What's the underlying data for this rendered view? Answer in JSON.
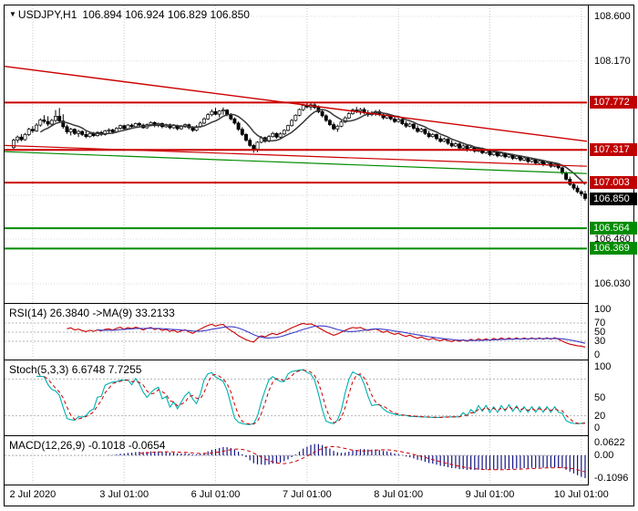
{
  "window": {
    "bg": "#ffffff",
    "border_color": "#000000"
  },
  "header": {
    "dropdown_icon": "▼",
    "symbol": "USDJPY,H1",
    "ohlc": "106.894 106.924 106.829 106.850"
  },
  "panels": {
    "rsi": {
      "title": "RSI(14) 26.3840  ->MA(9) 33.2133",
      "value": 26.384,
      "ma_value": 33.2133,
      "levels": [
        70,
        50,
        30
      ],
      "scale": [
        {
          "v": 100,
          "t": "100"
        },
        {
          "v": 70,
          "t": "70"
        },
        {
          "v": 50,
          "t": "50"
        },
        {
          "v": 30,
          "t": "30"
        },
        {
          "v": 0,
          "t": "0"
        }
      ],
      "colors": {
        "rsi": "#cc0000",
        "ma": "#3c3cc8"
      }
    },
    "stoch": {
      "title": "Stoch(5,3,3) 6.6748 7.7255",
      "k_value": 6.6748,
      "d_value": 7.7255,
      "levels": [
        80,
        20
      ],
      "scale": [
        {
          "v": 100,
          "t": "100"
        },
        {
          "v": 50,
          "t": "50"
        },
        {
          "v": 20,
          "t": "20"
        },
        {
          "v": 0,
          "t": "0"
        }
      ],
      "colors": {
        "k": "#00b0b0",
        "d": "#cc0000"
      }
    },
    "macd": {
      "title": "MACD(12,26,9) -0.1018 -0.0654",
      "macd_value": -0.1018,
      "signal_value": -0.0654,
      "range": [
        -0.1096,
        0.0622
      ],
      "scale": [
        {
          "v": 0.0622,
          "t": "0.0622"
        },
        {
          "v": 0,
          "t": "0.00"
        },
        {
          "v": -0.1096,
          "t": "-0.1096"
        }
      ],
      "colors": {
        "hist": "#141485",
        "signal": "#cc0000"
      }
    }
  },
  "price_scale": {
    "ticks": [
      {
        "v": 108.6,
        "t": "108.600"
      },
      {
        "v": 108.17,
        "t": "108.170"
      },
      {
        "v": 106.46,
        "t": "106.460"
      },
      {
        "v": 106.03,
        "t": "106.030"
      }
    ],
    "grid": [
      108.6,
      108.17,
      107.74,
      107.31,
      106.88,
      106.46,
      106.03
    ],
    "badges": [
      {
        "v": 107.772,
        "t": "107.772",
        "bg": "#c00000"
      },
      {
        "v": 107.317,
        "t": "107.317",
        "bg": "#c00000"
      },
      {
        "v": 107.003,
        "t": "107.003",
        "bg": "#c00000"
      },
      {
        "v": 106.85,
        "t": "106.850",
        "bg": "#000000"
      },
      {
        "v": 106.564,
        "t": "106.564",
        "bg": "#008c00"
      },
      {
        "v": 106.369,
        "t": "106.369",
        "bg": "#008c00"
      }
    ]
  },
  "chart_data": {
    "type": "candlestick",
    "symbol": "USDJPY",
    "timeframe": "H1",
    "title": "USDJPY,H1",
    "current_candle": {
      "open": 106.894,
      "high": 106.924,
      "low": 106.829,
      "close": 106.85
    },
    "y_range": [
      106.03,
      108.6
    ],
    "x_labels": [
      {
        "t": "2 Jul 2020",
        "i": 5
      },
      {
        "t": "3 Jul 01:00",
        "i": 29
      },
      {
        "t": "6 Jul 01:00",
        "i": 53
      },
      {
        "t": "7 Jul 01:00",
        "i": 77
      },
      {
        "t": "8 Jul 01:00",
        "i": 101
      },
      {
        "t": "9 Jul 01:00",
        "i": 125
      },
      {
        "t": "10 Jul 01:00",
        "i": 149
      }
    ],
    "overlays": {
      "ma_period": 8,
      "ma_color": "#3a3a3a",
      "hlines": [
        {
          "price": 107.772,
          "color": "#cc0000",
          "width": 2
        },
        {
          "price": 107.317,
          "color": "#cc0000",
          "width": 2
        },
        {
          "price": 107.003,
          "color": "#cc0000",
          "width": 2
        },
        {
          "price": 106.564,
          "color": "#008c00",
          "width": 2
        },
        {
          "price": 106.369,
          "color": "#008c00",
          "width": 2
        }
      ],
      "trendlines": [
        {
          "p1": 108.12,
          "p2": 107.4,
          "color": "#cc0000",
          "width": 1.4
        },
        {
          "p1": 107.36,
          "p2": 107.16,
          "color": "#cc0000",
          "width": 1.2
        },
        {
          "p1": 107.3,
          "p2": 107.09,
          "color": "#008c00",
          "width": 1.2
        }
      ]
    },
    "indicators": {
      "rsi": {
        "period": 14,
        "ma_period": 9,
        "value": 26.384,
        "ma_value": 33.2133
      },
      "stoch": {
        "k": 5,
        "d": 3,
        "slowing": 3,
        "k_value": 6.6748,
        "d_value": 7.7255
      },
      "macd": {
        "fast": 12,
        "slow": 26,
        "signal": 9,
        "value": -0.1018,
        "signal_value": -0.0654
      }
    },
    "candles": [
      [
        107.34,
        107.425,
        107.315,
        107.41
      ],
      [
        107.41,
        107.455,
        107.385,
        107.44
      ],
      [
        107.44,
        107.47,
        107.4,
        107.415
      ],
      [
        107.415,
        107.48,
        107.405,
        107.465
      ],
      [
        107.465,
        107.53,
        107.45,
        107.515
      ],
      [
        107.515,
        107.545,
        107.48,
        107.5
      ],
      [
        107.5,
        107.575,
        107.49,
        107.555
      ],
      [
        107.555,
        107.62,
        107.54,
        107.605
      ],
      [
        107.605,
        107.65,
        107.57,
        107.59
      ],
      [
        107.59,
        107.64,
        107.545,
        107.565
      ],
      [
        107.565,
        107.615,
        107.55,
        107.6
      ],
      [
        107.6,
        107.7,
        107.585,
        107.64
      ],
      [
        107.64,
        107.72,
        107.575,
        107.595
      ],
      [
        107.595,
        107.66,
        107.52,
        107.54
      ],
      [
        107.54,
        107.56,
        107.47,
        107.49
      ],
      [
        107.49,
        107.53,
        107.455,
        107.515
      ],
      [
        107.515,
        107.525,
        107.46,
        107.475
      ],
      [
        107.475,
        107.51,
        107.44,
        107.495
      ],
      [
        107.495,
        107.505,
        107.45,
        107.465
      ],
      [
        107.465,
        107.5,
        107.43,
        107.445
      ],
      [
        107.445,
        107.485,
        107.435,
        107.475
      ],
      [
        107.475,
        107.49,
        107.44,
        107.455
      ],
      [
        107.455,
        107.495,
        107.445,
        107.485
      ],
      [
        107.485,
        107.5,
        107.45,
        107.465
      ],
      [
        107.465,
        107.51,
        107.455,
        107.5
      ],
      [
        107.5,
        107.525,
        107.48,
        107.51
      ],
      [
        107.51,
        107.52,
        107.47,
        107.49
      ],
      [
        107.49,
        107.535,
        107.48,
        107.525
      ],
      [
        107.525,
        107.56,
        107.51,
        107.55
      ],
      [
        107.55,
        107.56,
        107.505,
        107.52
      ],
      [
        107.52,
        107.565,
        107.51,
        107.555
      ],
      [
        107.555,
        107.57,
        107.525,
        107.54
      ],
      [
        107.54,
        107.58,
        107.53,
        107.57
      ],
      [
        107.57,
        107.585,
        107.54,
        107.555
      ],
      [
        107.555,
        107.57,
        107.52,
        107.53
      ],
      [
        107.53,
        107.57,
        107.52,
        107.56
      ],
      [
        107.56,
        107.59,
        107.545,
        107.58
      ],
      [
        107.58,
        107.59,
        107.535,
        107.55
      ],
      [
        107.55,
        107.58,
        107.535,
        107.57
      ],
      [
        107.57,
        107.58,
        107.525,
        107.54
      ],
      [
        107.54,
        107.57,
        107.53,
        107.56
      ],
      [
        107.56,
        107.57,
        107.515,
        107.53
      ],
      [
        107.53,
        107.565,
        107.52,
        107.55
      ],
      [
        107.55,
        107.56,
        107.505,
        107.52
      ],
      [
        107.52,
        107.555,
        107.51,
        107.54
      ],
      [
        107.54,
        107.57,
        107.53,
        107.56
      ],
      [
        107.56,
        107.57,
        107.515,
        107.53
      ],
      [
        107.53,
        107.545,
        107.49,
        107.505
      ],
      [
        107.505,
        107.555,
        107.495,
        107.54
      ],
      [
        107.54,
        107.59,
        107.53,
        107.575
      ],
      [
        107.575,
        107.63,
        107.565,
        107.615
      ],
      [
        107.615,
        107.67,
        107.605,
        107.655
      ],
      [
        107.655,
        107.705,
        107.64,
        107.685
      ],
      [
        107.685,
        107.72,
        107.65,
        107.66
      ],
      [
        107.66,
        107.7,
        107.63,
        107.69
      ],
      [
        107.69,
        107.725,
        107.655,
        107.7
      ],
      [
        107.7,
        107.71,
        107.64,
        107.655
      ],
      [
        107.655,
        107.67,
        107.6,
        107.615
      ],
      [
        107.615,
        107.63,
        107.56,
        107.575
      ],
      [
        107.575,
        107.59,
        107.5,
        107.515
      ],
      [
        107.515,
        107.535,
        107.45,
        107.465
      ],
      [
        107.465,
        107.48,
        107.395,
        107.41
      ],
      [
        107.41,
        107.43,
        107.345,
        107.36
      ],
      [
        107.36,
        107.375,
        107.29,
        107.325
      ],
      [
        107.325,
        107.4,
        107.295,
        107.39
      ],
      [
        107.39,
        107.45,
        107.38,
        107.435
      ],
      [
        107.435,
        107.445,
        107.385,
        107.4
      ],
      [
        107.4,
        107.46,
        107.39,
        107.445
      ],
      [
        107.445,
        107.49,
        107.435,
        107.475
      ],
      [
        107.475,
        107.485,
        107.425,
        107.44
      ],
      [
        107.44,
        107.485,
        107.43,
        107.47
      ],
      [
        107.47,
        107.515,
        107.46,
        107.505
      ],
      [
        107.505,
        107.56,
        107.495,
        107.55
      ],
      [
        107.55,
        107.615,
        107.54,
        107.6
      ],
      [
        107.6,
        107.66,
        107.59,
        107.65
      ],
      [
        107.65,
        107.715,
        107.64,
        107.705
      ],
      [
        107.705,
        107.76,
        107.69,
        107.745
      ],
      [
        107.745,
        107.772,
        107.715,
        107.73
      ],
      [
        107.73,
        107.765,
        107.7,
        107.75
      ],
      [
        107.75,
        107.77,
        107.71,
        107.725
      ],
      [
        107.725,
        107.745,
        107.67,
        107.685
      ],
      [
        107.685,
        107.7,
        107.63,
        107.645
      ],
      [
        107.645,
        107.66,
        107.585,
        107.6
      ],
      [
        107.6,
        107.615,
        107.545,
        107.56
      ],
      [
        107.56,
        107.58,
        107.505,
        107.52
      ],
      [
        107.52,
        107.56,
        107.49,
        107.545
      ],
      [
        107.545,
        107.6,
        107.535,
        107.585
      ],
      [
        107.585,
        107.64,
        107.575,
        107.625
      ],
      [
        107.625,
        107.68,
        107.615,
        107.665
      ],
      [
        107.665,
        107.715,
        107.655,
        107.7
      ],
      [
        107.7,
        107.73,
        107.67,
        107.69
      ],
      [
        107.69,
        107.72,
        107.655,
        107.705
      ],
      [
        107.705,
        107.725,
        107.66,
        107.675
      ],
      [
        107.675,
        107.7,
        107.635,
        107.655
      ],
      [
        107.655,
        107.69,
        107.64,
        107.67
      ],
      [
        107.67,
        107.7,
        107.645,
        107.685
      ],
      [
        107.685,
        107.705,
        107.64,
        107.655
      ],
      [
        107.655,
        107.67,
        107.61,
        107.625
      ],
      [
        107.625,
        107.665,
        107.615,
        107.65
      ],
      [
        107.65,
        107.66,
        107.6,
        107.615
      ],
      [
        107.615,
        107.64,
        107.575,
        107.59
      ],
      [
        107.59,
        107.625,
        107.58,
        107.61
      ],
      [
        107.61,
        107.62,
        107.555,
        107.57
      ],
      [
        107.57,
        107.595,
        107.53,
        107.545
      ],
      [
        107.545,
        107.58,
        107.535,
        107.565
      ],
      [
        107.565,
        107.575,
        107.51,
        107.525
      ],
      [
        107.525,
        107.55,
        107.48,
        107.495
      ],
      [
        107.495,
        107.53,
        107.485,
        107.515
      ],
      [
        107.515,
        107.525,
        107.46,
        107.475
      ],
      [
        107.475,
        107.5,
        107.43,
        107.445
      ],
      [
        107.445,
        107.48,
        107.435,
        107.465
      ],
      [
        107.465,
        107.475,
        107.41,
        107.425
      ],
      [
        107.425,
        107.455,
        107.385,
        107.4
      ],
      [
        107.4,
        107.435,
        107.39,
        107.42
      ],
      [
        107.42,
        107.43,
        107.365,
        107.38
      ],
      [
        107.38,
        107.41,
        107.34,
        107.355
      ],
      [
        107.355,
        107.39,
        107.345,
        107.375
      ],
      [
        107.375,
        107.385,
        107.32,
        107.335
      ],
      [
        107.335,
        107.37,
        107.325,
        107.355
      ],
      [
        107.355,
        107.365,
        107.3,
        107.315
      ],
      [
        107.315,
        107.355,
        107.305,
        107.34
      ],
      [
        107.34,
        107.35,
        107.29,
        107.305
      ],
      [
        107.305,
        107.345,
        107.295,
        107.33
      ],
      [
        107.33,
        107.34,
        107.275,
        107.29
      ],
      [
        107.29,
        107.325,
        107.28,
        107.31
      ],
      [
        107.31,
        107.32,
        107.255,
        107.27
      ],
      [
        107.27,
        107.31,
        107.26,
        107.295
      ],
      [
        107.295,
        107.305,
        107.245,
        107.26
      ],
      [
        107.26,
        107.3,
        107.25,
        107.285
      ],
      [
        107.285,
        107.295,
        107.235,
        107.25
      ],
      [
        107.25,
        107.285,
        107.24,
        107.27
      ],
      [
        107.27,
        107.28,
        107.22,
        107.235
      ],
      [
        107.235,
        107.27,
        107.225,
        107.255
      ],
      [
        107.255,
        107.265,
        107.205,
        107.22
      ],
      [
        107.22,
        107.255,
        107.21,
        107.24
      ],
      [
        107.24,
        107.25,
        107.19,
        107.205
      ],
      [
        107.205,
        107.24,
        107.195,
        107.225
      ],
      [
        107.225,
        107.235,
        107.175,
        107.19
      ],
      [
        107.19,
        107.225,
        107.18,
        107.21
      ],
      [
        107.21,
        107.22,
        107.16,
        107.175
      ],
      [
        107.175,
        107.21,
        107.165,
        107.195
      ],
      [
        107.195,
        107.205,
        107.145,
        107.16
      ],
      [
        107.16,
        107.195,
        107.15,
        107.18
      ],
      [
        107.18,
        107.19,
        107.13,
        107.145
      ],
      [
        107.145,
        107.16,
        107.08,
        107.095
      ],
      [
        107.095,
        107.11,
        107.02,
        107.035
      ],
      [
        107.035,
        107.06,
        106.97,
        106.985
      ],
      [
        106.985,
        107.005,
        106.93,
        106.95
      ],
      [
        106.95,
        106.975,
        106.9,
        106.915
      ],
      [
        106.915,
        106.93,
        106.87,
        106.894
      ],
      [
        106.894,
        106.924,
        106.829,
        106.85
      ]
    ]
  }
}
